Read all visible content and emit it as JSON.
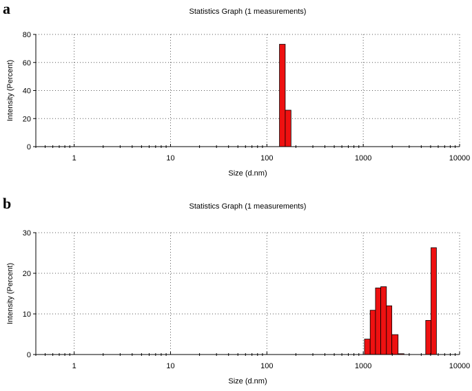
{
  "chart_data": [
    {
      "panel_label": "a",
      "type": "bar",
      "title": "Statistics Graph (1 measurements)",
      "xlabel": "Size (d.nm)",
      "ylabel": "Intensity (Percent)",
      "x_scale": "log",
      "xlim": [
        0.4,
        10000
      ],
      "ylim": [
        0,
        80
      ],
      "x_ticks": [
        1,
        10,
        100,
        1000,
        10000
      ],
      "x_tick_labels": [
        "1",
        "10",
        "100",
        "1000",
        "10000"
      ],
      "y_ticks": [
        0,
        20,
        40,
        60,
        80
      ],
      "y_tick_labels": [
        "0",
        "20",
        "40",
        "60",
        "80"
      ],
      "grid": true,
      "bar_color": "#ee1111",
      "bars": [
        {
          "x_start": 135,
          "x_end": 155,
          "value": 73
        },
        {
          "x_start": 155,
          "x_end": 178,
          "value": 26
        }
      ]
    },
    {
      "panel_label": "b",
      "type": "bar",
      "title": "Statistics Graph (1 measurements)",
      "xlabel": "Size (d.nm)",
      "ylabel": "Intensity (Percent)",
      "x_scale": "log",
      "xlim": [
        0.4,
        10000
      ],
      "ylim": [
        0,
        30
      ],
      "x_ticks": [
        1,
        10,
        100,
        1000,
        10000
      ],
      "x_tick_labels": [
        "1",
        "10",
        "100",
        "1000",
        "10000"
      ],
      "y_ticks": [
        0,
        10,
        20,
        30
      ],
      "y_tick_labels": [
        "0",
        "10",
        "20",
        "30"
      ],
      "grid": true,
      "bar_color": "#ee1111",
      "bars": [
        {
          "x_start": 1030,
          "x_end": 1180,
          "value": 3.8
        },
        {
          "x_start": 1180,
          "x_end": 1340,
          "value": 10.9
        },
        {
          "x_start": 1340,
          "x_end": 1520,
          "value": 16.4
        },
        {
          "x_start": 1520,
          "x_end": 1740,
          "value": 16.7
        },
        {
          "x_start": 1740,
          "x_end": 1980,
          "value": 12.0
        },
        {
          "x_start": 1980,
          "x_end": 2300,
          "value": 4.9
        },
        {
          "x_start": 2300,
          "x_end": 2650,
          "value": 0.2
        },
        {
          "x_start": 4450,
          "x_end": 5050,
          "value": 8.4
        },
        {
          "x_start": 5050,
          "x_end": 5750,
          "value": 26.3
        }
      ]
    }
  ]
}
